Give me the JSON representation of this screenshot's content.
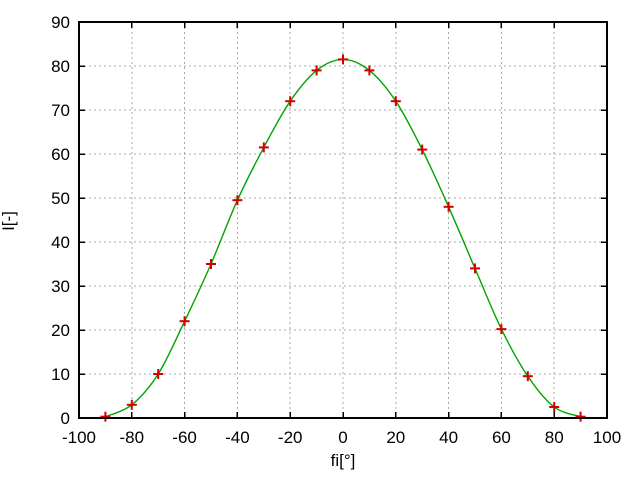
{
  "figure": {
    "background": "#ffffff",
    "axis_color": "#000000",
    "grid_color": "#a8a8a8",
    "text_color": "#000000"
  },
  "chart_data": {
    "type": "line",
    "title": "",
    "xlabel": "fi[°]",
    "ylabel": "I[-]",
    "xlim": [
      -100,
      100
    ],
    "ylim": [
      0,
      90
    ],
    "xticks": [
      -100,
      -80,
      -60,
      -40,
      -20,
      0,
      20,
      40,
      60,
      80,
      100
    ],
    "yticks": [
      0,
      10,
      20,
      30,
      40,
      50,
      60,
      70,
      80,
      90
    ],
    "grid": true,
    "legend_visible": false,
    "x": [
      -90,
      -80,
      -70,
      -60,
      -50,
      -40,
      -30,
      -20,
      -10,
      0,
      10,
      20,
      30,
      40,
      50,
      60,
      70,
      80,
      90
    ],
    "series": [
      {
        "name": "smooth curve",
        "type": "spline",
        "color": "#00a400",
        "line_width": 1.4,
        "values": [
          0.3,
          3,
          10,
          22,
          35,
          49.5,
          61.5,
          72,
          79,
          81.5,
          79,
          72,
          61,
          48,
          34,
          20.2,
          9.5,
          2.5,
          0.3
        ]
      },
      {
        "name": "measured points",
        "type": "scatter",
        "marker": "plus",
        "color": "#d40000",
        "marker_size": 5,
        "values": [
          0.3,
          3,
          10,
          22,
          35,
          49.5,
          61.5,
          72,
          79,
          81.5,
          79,
          72,
          61,
          48,
          34,
          20.2,
          9.5,
          2.5,
          0.3
        ]
      }
    ]
  }
}
